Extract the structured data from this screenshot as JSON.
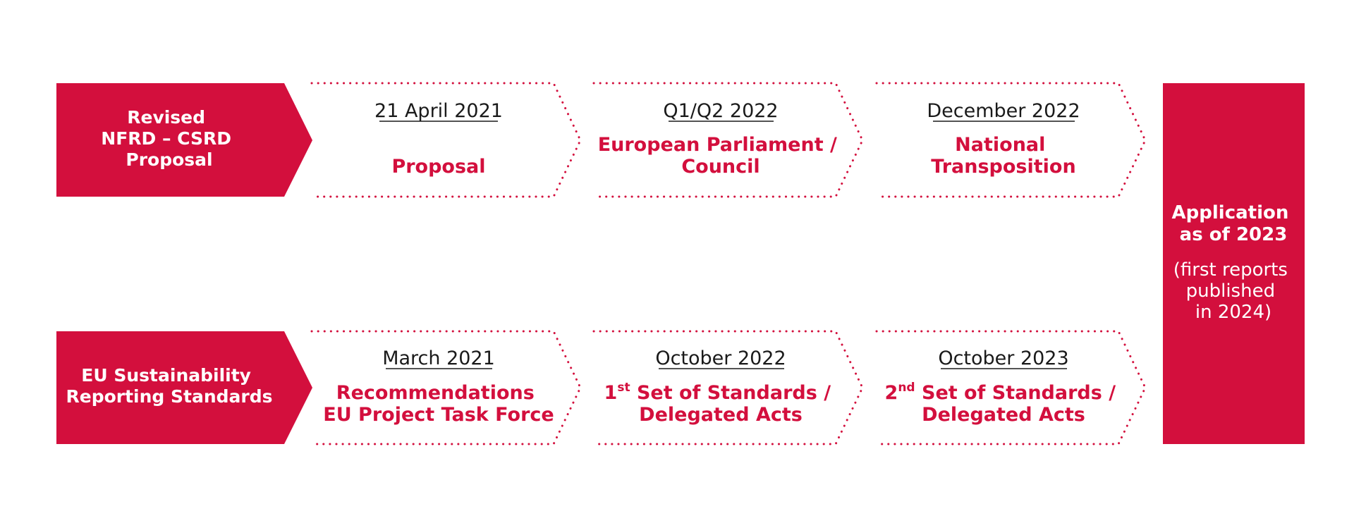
{
  "colors": {
    "accent": "#D30F3D",
    "text_dark": "#1A1A1A",
    "background": "#FFFFFF"
  },
  "rows": [
    {
      "start_label": [
        "Revised",
        "NFRD – CSRD",
        "Proposal"
      ],
      "steps": [
        {
          "date": "21 April 2021",
          "label": [
            "Proposal"
          ]
        },
        {
          "date": "Q1/Q2 2022",
          "label": [
            "European Parliament /",
            "Council"
          ]
        },
        {
          "date": "December 2022",
          "label": [
            "National",
            "Transposition"
          ]
        }
      ]
    },
    {
      "start_label": [
        "EU Sustainability",
        "Reporting Standards"
      ],
      "steps": [
        {
          "date": "March 2021",
          "label": [
            "Recommendations",
            "EU Project Task Force"
          ]
        },
        {
          "date": "October 2022",
          "label_parts": {
            "ordinal": "1",
            "sup": "st",
            "rest": " Set of Standards /"
          },
          "label": [
            "Delegated Acts"
          ]
        },
        {
          "date": "October 2023",
          "label_parts": {
            "ordinal": "2",
            "sup": "nd",
            "rest": " Set of Standards /"
          },
          "label": [
            "Delegated Acts"
          ]
        }
      ]
    }
  ],
  "final": {
    "title": [
      "Application",
      "as of 2023"
    ],
    "note": [
      "(first reports",
      "published",
      "in 2024)"
    ]
  }
}
